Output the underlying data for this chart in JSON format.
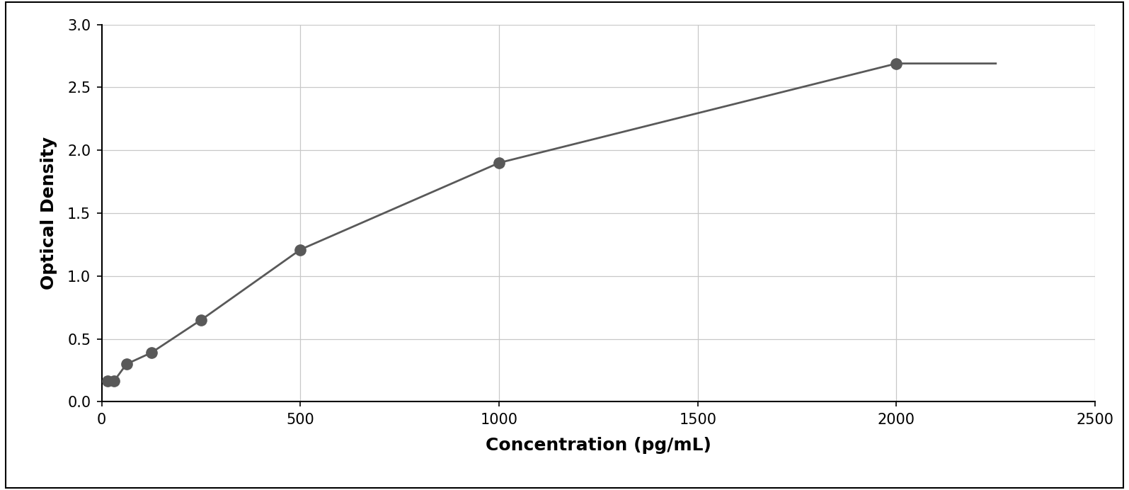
{
  "x_data": [
    15.6,
    31.25,
    62.5,
    125,
    250,
    500,
    1000,
    2000
  ],
  "y_data": [
    0.165,
    0.165,
    0.3,
    0.39,
    0.65,
    1.21,
    1.9,
    2.69
  ],
  "xlabel": "Concentration (pg/mL)",
  "ylabel": "Optical Density",
  "xlim": [
    0,
    2500
  ],
  "ylim": [
    0,
    3
  ],
  "yticks": [
    0,
    0.5,
    1.0,
    1.5,
    2.0,
    2.5,
    3.0
  ],
  "xticks": [
    0,
    500,
    1000,
    1500,
    2000,
    2500
  ],
  "marker_color": "#595959",
  "line_color": "#595959",
  "background_color": "#ffffff",
  "grid_color": "#c8c8c8",
  "marker_size": 11,
  "line_width": 2.0,
  "xlabel_fontsize": 18,
  "ylabel_fontsize": 18,
  "tick_fontsize": 15,
  "border_color": "#000000",
  "curve_xmax": 2250
}
